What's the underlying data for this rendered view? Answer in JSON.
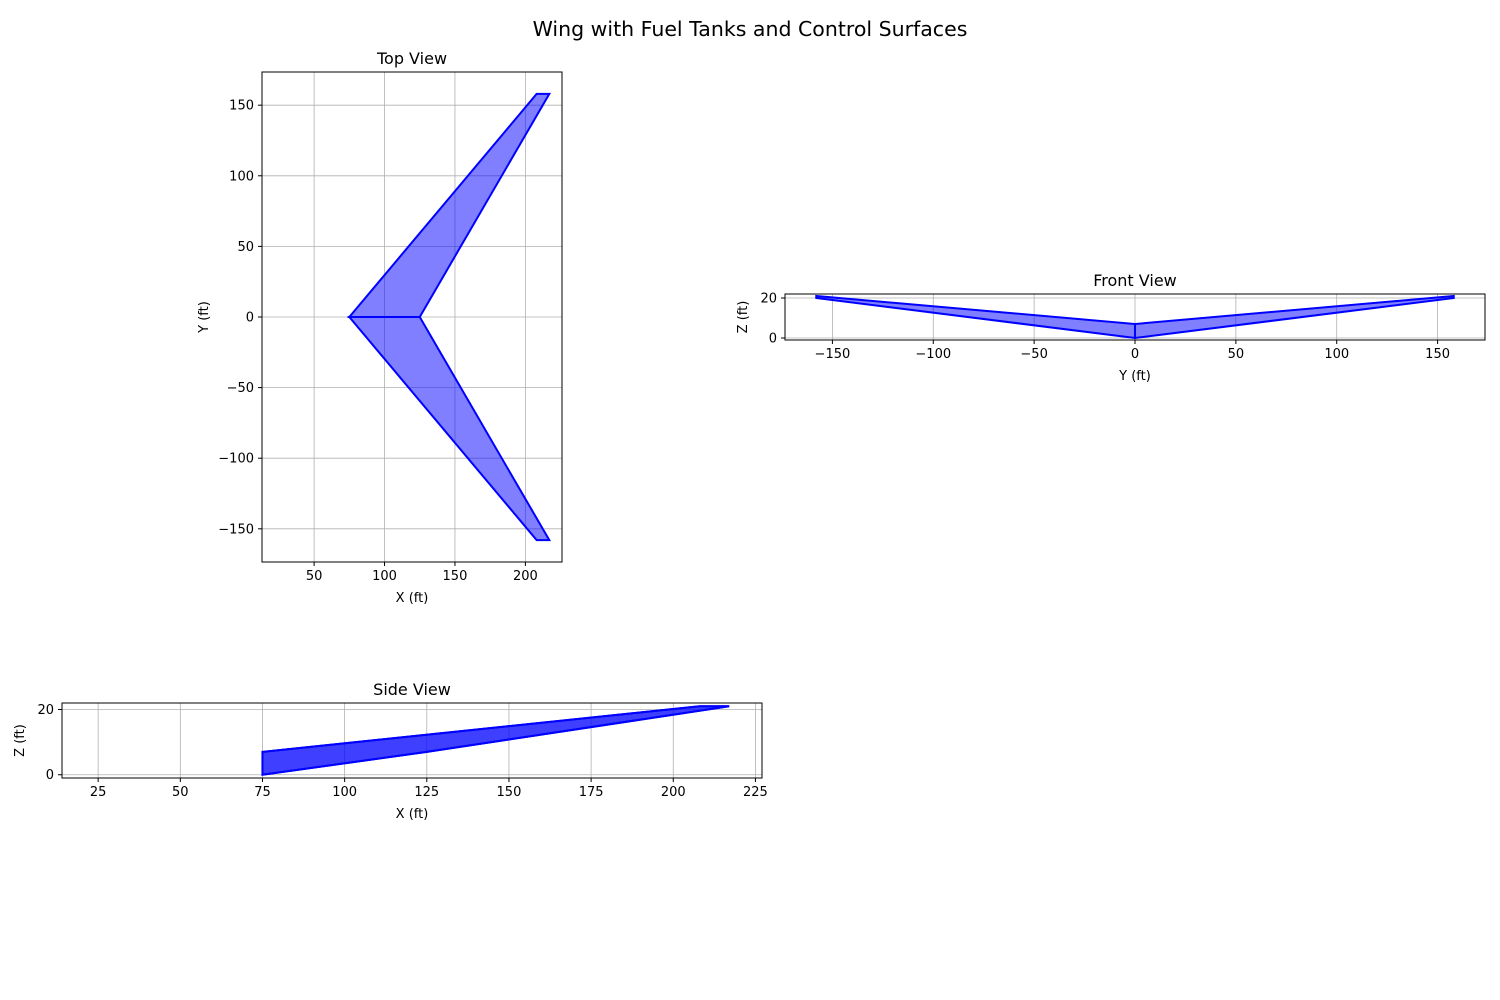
{
  "figure": {
    "suptitle": "Wing with Fuel Tanks and Control Surfaces"
  },
  "style": {
    "edge_color": "#0000ff",
    "fill_color": "#0000ff",
    "grid_color": "#b0b0b0",
    "axis_color": "#000000"
  },
  "chart_data": [
    {
      "type": "area",
      "title": "Top View",
      "xlabel": "X (ft)",
      "ylabel": "Y (ft)",
      "xlim": [
        13,
        226
      ],
      "ylim": [
        -173.5,
        173.5
      ],
      "xticks": [
        50,
        100,
        150,
        200
      ],
      "yticks": [
        -150,
        -100,
        -50,
        0,
        50,
        100,
        150
      ],
      "grid": true,
      "fill_opacity": 0.5,
      "polygons": [
        [
          [
            75,
            0
          ],
          [
            208,
            158
          ],
          [
            217,
            158
          ],
          [
            125,
            0
          ]
        ],
        [
          [
            75,
            0
          ],
          [
            208,
            -158
          ],
          [
            217,
            -158
          ],
          [
            125,
            0
          ]
        ]
      ]
    },
    {
      "type": "area",
      "title": "Front View",
      "xlabel": "Y (ft)",
      "ylabel": "Z (ft)",
      "xlim": [
        -173.5,
        173.5
      ],
      "ylim": [
        -1,
        22
      ],
      "xticks": [
        -150,
        -100,
        -50,
        0,
        50,
        100,
        150
      ],
      "yticks": [
        0,
        20
      ],
      "grid": true,
      "fill_opacity": 0.5,
      "polygons": [
        [
          [
            0,
            0
          ],
          [
            0,
            7
          ],
          [
            158,
            21
          ],
          [
            158,
            20
          ]
        ],
        [
          [
            0,
            0
          ],
          [
            0,
            7
          ],
          [
            -158,
            21
          ],
          [
            -158,
            20
          ]
        ]
      ]
    },
    {
      "type": "area",
      "title": "Side View",
      "xlabel": "X (ft)",
      "ylabel": "Z (ft)",
      "xlim": [
        14,
        227
      ],
      "ylim": [
        -1,
        22
      ],
      "xticks": [
        25,
        50,
        75,
        100,
        125,
        150,
        175,
        200,
        225
      ],
      "yticks": [
        0,
        20
      ],
      "grid": true,
      "fill_opacity": 0.5,
      "polygons": [
        [
          [
            75,
            0
          ],
          [
            75,
            7
          ],
          [
            208,
            21
          ],
          [
            217,
            21
          ],
          [
            125,
            7
          ]
        ],
        [
          [
            75,
            0
          ],
          [
            75,
            7
          ],
          [
            208,
            21
          ],
          [
            217,
            21
          ],
          [
            125,
            7
          ]
        ]
      ]
    }
  ]
}
